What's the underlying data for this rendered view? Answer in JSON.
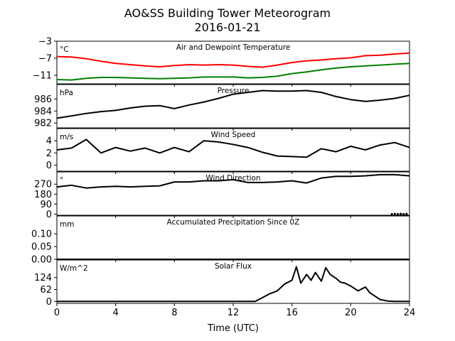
{
  "chart_data": {
    "type": "line",
    "title": "AO&SS Building Tower Meteorogram",
    "subtitle": "2016-01-21",
    "xlabel": "Time (UTC)",
    "x_ticks": [
      0,
      4,
      8,
      12,
      16,
      20,
      24
    ],
    "xlim": [
      0,
      24
    ],
    "colors": {
      "temperature": "#ff0000",
      "dewpoint": "#008000",
      "default": "#000000"
    },
    "panels": [
      {
        "title": "Air and Dewpoint Temperature",
        "unit": "°C",
        "ylim": [
          -13,
          -3
        ],
        "y_ticks": [
          -3,
          -7,
          -11
        ],
        "series": [
          {
            "key": "temperature",
            "x": [
              0,
              1,
              2,
              3,
              4,
              5,
              6,
              7,
              8,
              9,
              10,
              11,
              12,
              13,
              14,
              15,
              16,
              17,
              18,
              19,
              20,
              21,
              22,
              23,
              24
            ],
            "values": [
              -6.6,
              -6.7,
              -7.1,
              -7.7,
              -8.2,
              -8.5,
              -8.8,
              -9.0,
              -8.7,
              -8.5,
              -8.6,
              -8.5,
              -8.6,
              -8.9,
              -9.1,
              -8.6,
              -8.0,
              -7.6,
              -7.4,
              -7.1,
              -6.9,
              -6.4,
              -6.3,
              -6.0,
              -5.8
            ]
          },
          {
            "key": "dewpoint",
            "x": [
              0,
              1,
              2,
              3,
              4,
              5,
              6,
              7,
              8,
              9,
              10,
              11,
              12,
              13,
              14,
              15,
              16,
              17,
              18,
              19,
              20,
              21,
              22,
              23,
              24
            ],
            "values": [
              -12.0,
              -12.1,
              -11.7,
              -11.5,
              -11.5,
              -11.6,
              -11.7,
              -11.8,
              -11.7,
              -11.6,
              -11.4,
              -11.4,
              -11.4,
              -11.6,
              -11.5,
              -11.2,
              -10.6,
              -10.2,
              -9.7,
              -9.3,
              -9.0,
              -8.8,
              -8.6,
              -8.4,
              -8.2
            ]
          }
        ]
      },
      {
        "title": "Pressure",
        "unit": "hPa",
        "ylim": [
          981.2,
          988.4
        ],
        "y_ticks": [
          982,
          984,
          986
        ],
        "series": [
          {
            "key": "default",
            "x": [
              0,
              1,
              2,
              3,
              4,
              5,
              6,
              7,
              8,
              9,
              10,
              11,
              12,
              13,
              14,
              15,
              16,
              17,
              18,
              19,
              20,
              21,
              22,
              23,
              24
            ],
            "values": [
              982.8,
              983.2,
              983.6,
              983.9,
              984.1,
              984.5,
              984.8,
              984.9,
              984.4,
              985.0,
              985.5,
              986.1,
              986.8,
              987.1,
              987.4,
              987.3,
              987.3,
              987.4,
              987.1,
              986.4,
              985.9,
              985.6,
              985.8,
              986.1,
              986.6
            ]
          }
        ]
      },
      {
        "title": "Wind Speed",
        "unit": "m/s",
        "ylim": [
          -1,
          6
        ],
        "y_ticks": [
          0,
          2,
          4
        ],
        "series": [
          {
            "key": "default",
            "x": [
              0,
              1,
              2,
              3,
              4,
              5,
              6,
              7,
              8,
              9,
              10,
              11,
              12,
              13,
              14,
              15,
              16,
              17,
              18,
              19,
              20,
              21,
              22,
              23,
              24
            ],
            "values": [
              2.5,
              2.8,
              4.2,
              2.0,
              2.9,
              2.3,
              2.8,
              2.0,
              2.9,
              2.2,
              4.0,
              3.8,
              3.4,
              2.9,
              2.1,
              1.5,
              1.4,
              1.3,
              2.7,
              2.2,
              3.1,
              2.5,
              3.3,
              3.7,
              2.9
            ]
          }
        ]
      },
      {
        "title": "Wind Direction",
        "unit": "°",
        "ylim": [
          -10,
          380
        ],
        "y_ticks": [
          0,
          90,
          180,
          270
        ],
        "series": [
          {
            "key": "default",
            "x": [
              0,
              1,
              2,
              3,
              4,
              5,
              6,
              7,
              8,
              9,
              10,
              11,
              12,
              13,
              14,
              15,
              16,
              17,
              18,
              19,
              20,
              21,
              22,
              23,
              24
            ],
            "values": [
              245,
              260,
              235,
              245,
              250,
              245,
              250,
              255,
              290,
              290,
              300,
              300,
              310,
              285,
              285,
              290,
              300,
              280,
              325,
              340,
              340,
              345,
              355,
              355,
              345
            ]
          },
          {
            "key": "default",
            "x": [
              22.8,
              23.0,
              23.2,
              23.4,
              23.6,
              23.8
            ],
            "values": [
              0,
              2,
              0,
              2,
              0,
              2
            ],
            "style": "markers"
          }
        ]
      },
      {
        "title": "Accumulated Precipitation Since 0Z",
        "unit": "mm",
        "ylim": [
          0,
          0.17
        ],
        "y_ticks": [
          0.0,
          0.05,
          0.1
        ],
        "y_tick_labels": [
          "0.00",
          "0.05",
          "0.10"
        ],
        "series": [
          {
            "key": "default",
            "x": [
              0,
              24
            ],
            "values": [
              0,
              0
            ]
          }
        ]
      },
      {
        "title": "Solar Flux",
        "unit": "W/m^2",
        "ylim": [
          -10,
          215
        ],
        "y_ticks": [
          0,
          62,
          124
        ],
        "series": [
          {
            "key": "default",
            "x": [
              0,
              13.5,
              14,
              14.5,
              15,
              15.5,
              16,
              16.3,
              16.6,
              17,
              17.3,
              17.6,
              18,
              18.3,
              18.6,
              19,
              19.3,
              19.6,
              20,
              20.5,
              21,
              21.3,
              21.6,
              22,
              22.5,
              23,
              24
            ],
            "values": [
              0,
              0,
              20,
              40,
              55,
              90,
              110,
              180,
              95,
              140,
              110,
              150,
              105,
              175,
              140,
              120,
              100,
              95,
              80,
              55,
              75,
              45,
              30,
              10,
              2,
              0,
              0
            ]
          }
        ]
      }
    ]
  }
}
